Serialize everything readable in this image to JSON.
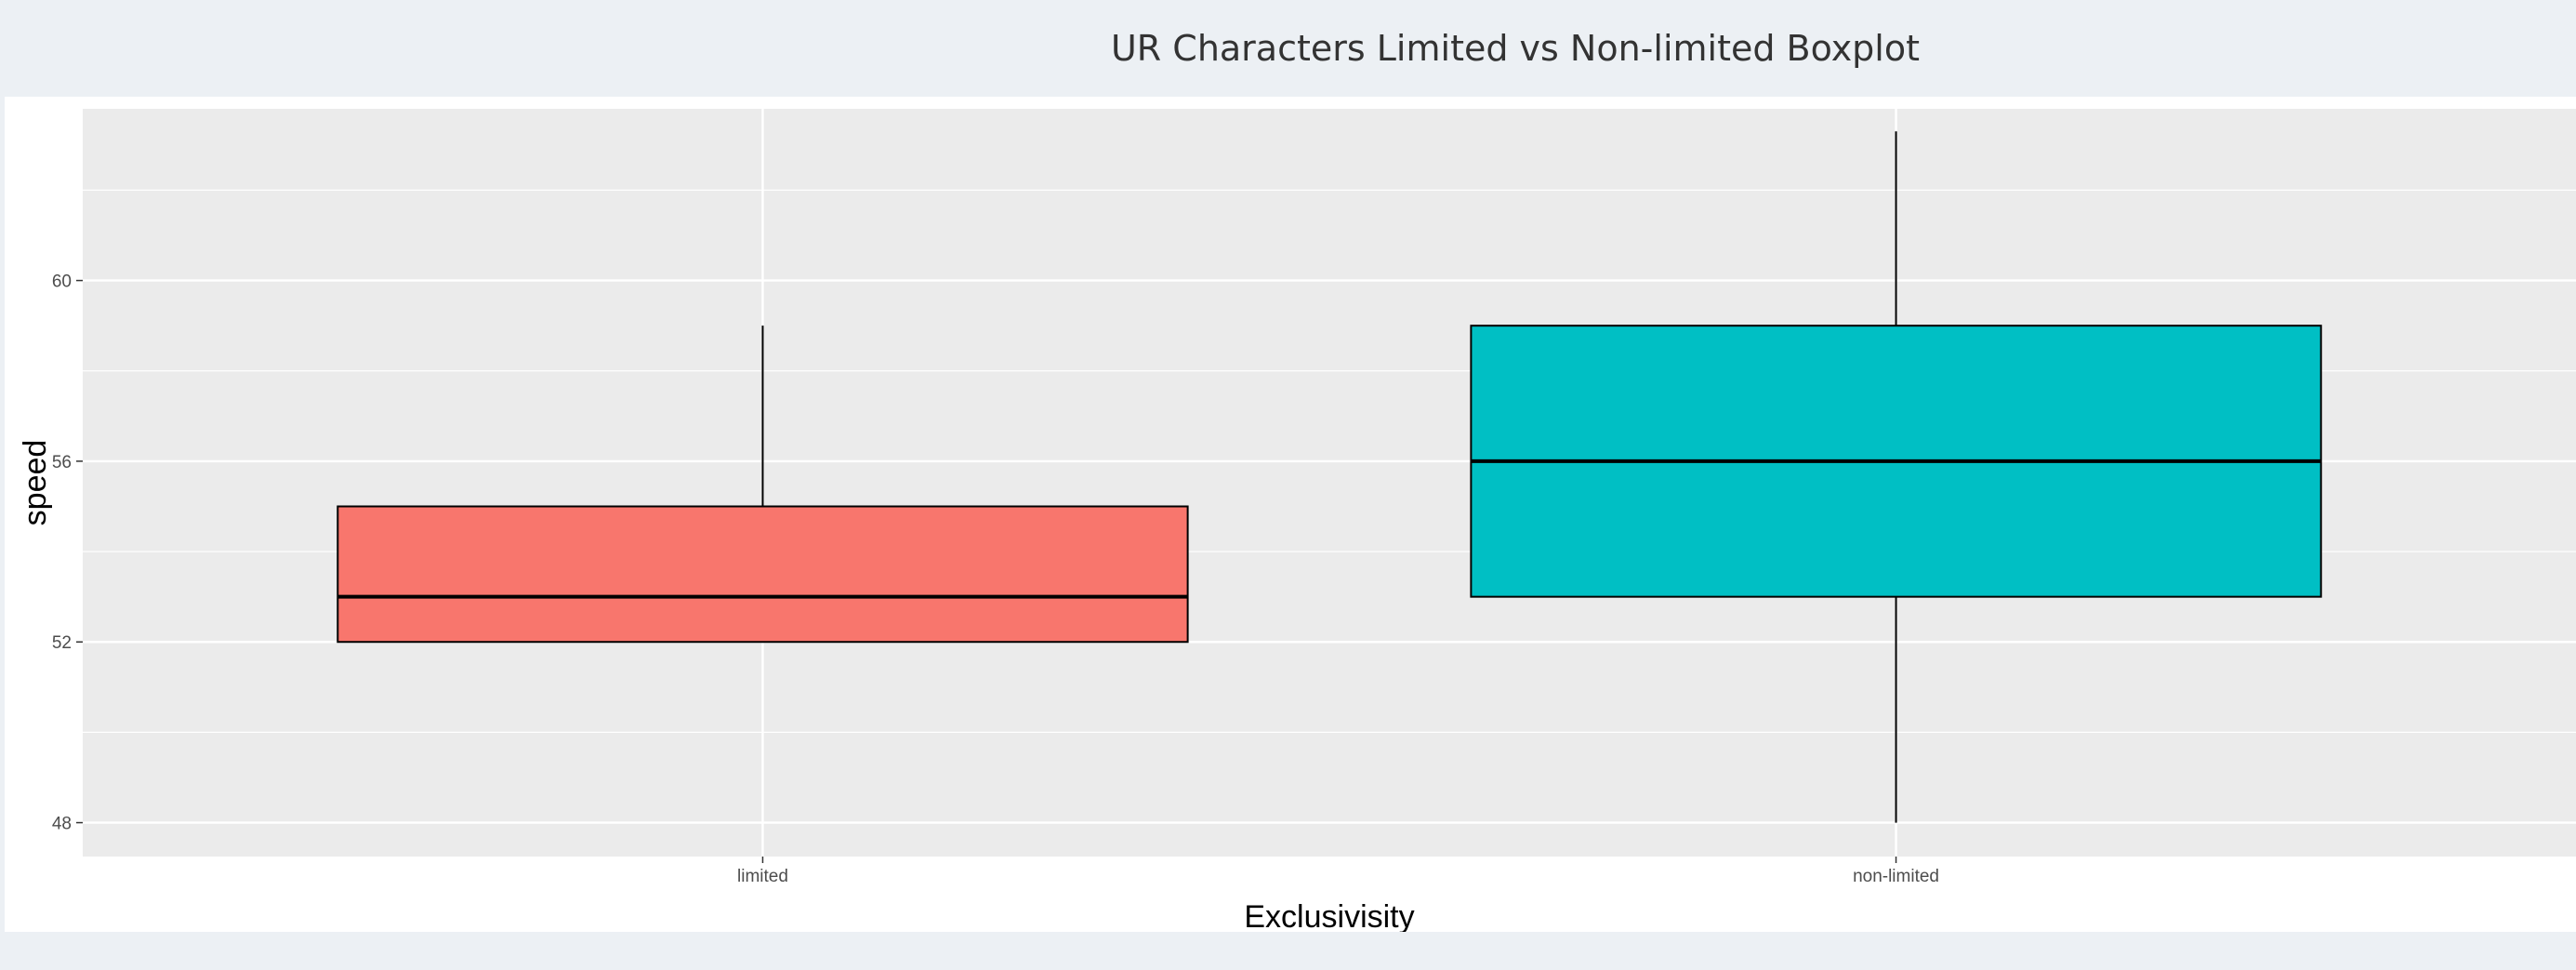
{
  "page": {
    "title": "UR Characters Limited vs Non-limited Boxplot"
  },
  "chart_data": {
    "type": "boxplot",
    "xlabel": "Exclusivisity",
    "ylabel": "speed",
    "categories": [
      "limited",
      "non-limited"
    ],
    "boxes": [
      {
        "category": "limited",
        "min": 52,
        "q1": 52,
        "median": 53,
        "q3": 55,
        "max": 59,
        "fill": "#f8766d"
      },
      {
        "category": "non-limited",
        "min": 48,
        "q1": 53,
        "median": 56,
        "q3": 59,
        "max": 63.3,
        "fill": "#00bfc4"
      }
    ],
    "ylim": [
      47.25,
      63.8
    ],
    "yticks": [
      48,
      52,
      56,
      60
    ],
    "grid": true,
    "legend": "none",
    "colors": {
      "panel": "#ebebeb",
      "grid": "#ffffff",
      "outline": "#000000"
    }
  }
}
